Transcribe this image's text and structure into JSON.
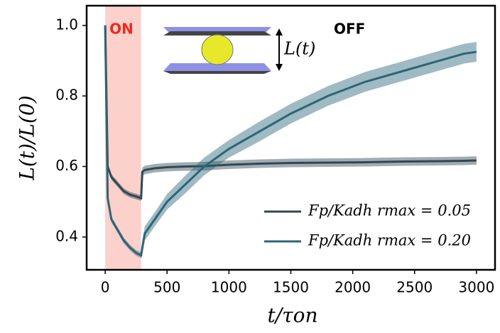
{
  "chart_data": {
    "type": "line",
    "xlabel": "t/τon",
    "ylabel": "L(t)/L(0)",
    "annotations": {
      "on": "ON",
      "off": "OFF",
      "inset": "L(t)"
    },
    "on_span": [
      0,
      290
    ],
    "x": [
      0,
      20,
      50,
      100,
      150,
      200,
      250,
      290,
      300,
      320,
      400,
      500,
      650,
      800,
      1000,
      1250,
      1500,
      1800,
      2100,
      2400,
      2700,
      2900,
      3000
    ],
    "series": [
      {
        "name": "Fp/Kadh rmax = 0.05",
        "color": "#2f4853",
        "values": [
          1.0,
          0.6,
          0.57,
          0.55,
          0.53,
          0.52,
          0.515,
          0.51,
          0.585,
          0.59,
          0.595,
          0.598,
          0.6,
          0.601,
          0.605,
          0.608,
          0.61,
          0.611,
          0.612,
          0.614,
          0.615,
          0.616,
          0.617
        ],
        "errors": [
          0.005,
          0.008,
          0.008,
          0.008,
          0.008,
          0.008,
          0.008,
          0.008,
          0.012,
          0.012,
          0.012,
          0.012,
          0.012,
          0.012,
          0.012,
          0.012,
          0.012,
          0.012,
          0.012,
          0.012,
          0.012,
          0.012,
          0.012
        ]
      },
      {
        "name": "Fp/Kadh rmax = 0.20",
        "color": "#2b6677",
        "values": [
          1.0,
          0.51,
          0.45,
          0.42,
          0.39,
          0.37,
          0.355,
          0.348,
          0.37,
          0.41,
          0.45,
          0.5,
          0.55,
          0.6,
          0.65,
          0.7,
          0.75,
          0.8,
          0.84,
          0.87,
          0.9,
          0.92,
          0.925
        ],
        "errors": [
          0.005,
          0.008,
          0.008,
          0.008,
          0.008,
          0.008,
          0.008,
          0.008,
          0.02,
          0.02,
          0.02,
          0.022,
          0.025,
          0.025,
          0.025,
          0.028,
          0.028,
          0.028,
          0.028,
          0.028,
          0.028,
          0.028,
          0.028
        ]
      }
    ],
    "xlim": [
      -150,
      3150
    ],
    "ylim": [
      0.307,
      1.056
    ],
    "xticks": [
      0,
      500,
      1000,
      1500,
      2000,
      2500,
      3000
    ],
    "yticks": [
      0.4,
      0.6,
      0.8,
      {
        "value": 1.0,
        "label": "1.0"
      }
    ],
    "legend": "lower right",
    "grid": false
  }
}
